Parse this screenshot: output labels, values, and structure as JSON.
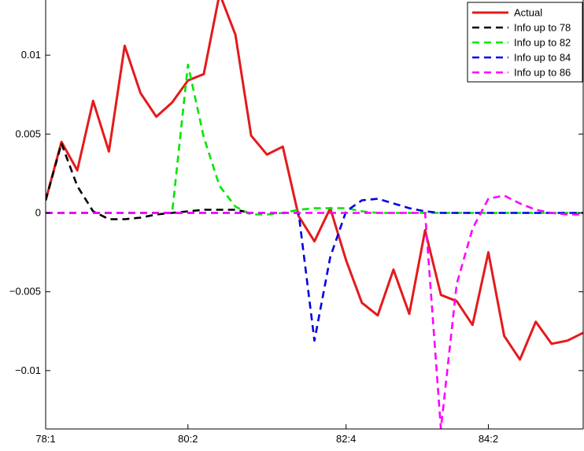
{
  "chart_data": {
    "type": "line",
    "title": "",
    "xlabel": "",
    "ylabel": "",
    "x_ticks": [
      "78:1",
      "80:2",
      "82:4",
      "84:2"
    ],
    "x_tick_index": [
      1,
      10,
      20,
      29
    ],
    "xlim": [
      1,
      35
    ],
    "y_ticks": [
      -0.01,
      -0.005,
      0,
      0.005,
      0.01
    ],
    "y_tick_labels": [
      "−0.01",
      "−0.005",
      "0",
      "0.005",
      "0.01"
    ],
    "ylim": [
      -0.0137,
      0.0135
    ],
    "grid": false,
    "legend_position": "top-right",
    "series": [
      {
        "name": "Actual",
        "color": "#e41a1c",
        "style": "solid",
        "x": [
          1,
          2,
          3,
          4,
          5,
          6,
          7,
          8,
          9,
          10,
          11,
          12,
          13,
          14,
          15,
          16,
          17,
          18,
          19,
          20,
          21,
          22,
          23,
          24,
          25,
          26,
          27,
          28,
          29,
          30,
          31,
          32,
          33,
          34,
          35
        ],
        "values": [
          0.0008,
          0.0045,
          0.0027,
          0.0071,
          0.0039,
          0.0106,
          0.0076,
          0.0061,
          0.007,
          0.0084,
          0.0088,
          0.0139,
          0.0113,
          0.0049,
          0.0037,
          0.0042,
          -0.0002,
          -0.0018,
          0.0003,
          -0.003,
          -0.0057,
          -0.0065,
          -0.0036,
          -0.0064,
          -0.0011,
          -0.0052,
          -0.0056,
          -0.0071,
          -0.0025,
          -0.0078,
          -0.0093,
          -0.0069,
          -0.0083,
          -0.0081,
          -0.0076
        ]
      },
      {
        "name": "Info up to 78",
        "color": "#000000",
        "style": "dashed",
        "x": [
          1,
          2,
          3,
          4,
          5,
          6,
          7,
          8,
          9,
          10,
          11,
          12,
          13,
          14
        ],
        "values": [
          0.0008,
          0.0044,
          0.0017,
          0.0001,
          -0.0004,
          -0.0004,
          -0.0003,
          -0.0001,
          0.0,
          0.0001,
          0.0002,
          0.0002,
          0.0002,
          0.0
        ]
      },
      {
        "name": "Info up to 82",
        "color": "#00e600",
        "style": "dashed",
        "x": [
          1,
          2,
          3,
          4,
          5,
          6,
          7,
          8,
          9,
          10,
          11,
          12,
          13,
          14,
          15,
          16,
          17,
          18,
          19,
          20,
          21,
          22,
          23,
          24,
          25,
          26,
          27,
          28,
          29,
          30,
          31,
          32,
          33,
          34,
          35
        ],
        "values": [
          0,
          0,
          0,
          0,
          0,
          0,
          0,
          0,
          0.0,
          0.0094,
          0.0048,
          0.0017,
          0.0004,
          -0.0001,
          -0.0001,
          0.0,
          0.0002,
          0.0003,
          0.0003,
          0.0003,
          0.0001,
          0.0,
          0.0,
          0.0,
          0.0,
          0.0,
          0.0,
          0.0,
          0.0,
          0.0,
          0.0,
          0.0,
          0.0,
          0.0,
          0.0
        ]
      },
      {
        "name": "Info up to 84",
        "color": "#0000e6",
        "style": "dashed",
        "x": [
          1,
          2,
          3,
          4,
          5,
          6,
          7,
          8,
          9,
          10,
          11,
          12,
          13,
          14,
          15,
          16,
          17,
          18,
          19,
          20,
          21,
          22,
          23,
          24,
          25,
          26,
          27,
          28,
          29,
          30,
          31,
          32,
          33,
          34,
          35
        ],
        "values": [
          0,
          0,
          0,
          0,
          0,
          0,
          0,
          0,
          0,
          0,
          0,
          0,
          0,
          0,
          0,
          0,
          0.0,
          -0.0081,
          -0.0028,
          0.0001,
          0.0008,
          0.0009,
          0.0006,
          0.0003,
          0.0001,
          0.0,
          0.0,
          0.0,
          0.0,
          0.0,
          0.0,
          0.0,
          0.0,
          0.0,
          0.0
        ]
      },
      {
        "name": "Info up to 86",
        "color": "#ff00ff",
        "style": "dashed",
        "x": [
          1,
          2,
          3,
          4,
          5,
          6,
          7,
          8,
          9,
          10,
          11,
          12,
          13,
          14,
          15,
          16,
          17,
          18,
          19,
          20,
          21,
          22,
          23,
          24,
          25,
          26,
          27,
          28,
          29,
          30,
          31,
          32,
          33,
          34,
          35
        ],
        "values": [
          0,
          0,
          0,
          0,
          0,
          0,
          0,
          0,
          0,
          0,
          0,
          0,
          0,
          0,
          0,
          0,
          0,
          0,
          0,
          0,
          0,
          0,
          0,
          0,
          0.0,
          -0.0137,
          -0.0045,
          -0.001,
          0.0009,
          0.0011,
          0.0006,
          0.0002,
          0.0,
          -0.0001,
          -0.0001
        ]
      }
    ]
  }
}
